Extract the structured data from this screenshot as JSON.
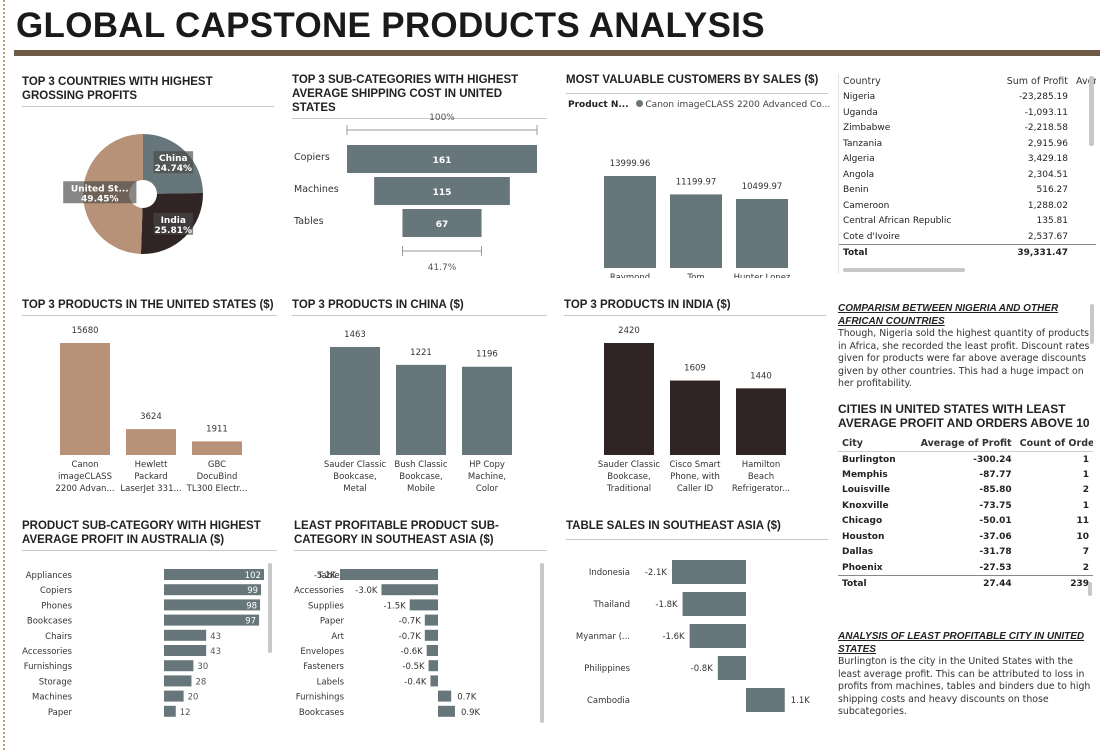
{
  "title": "GLOBAL CAPSTONE PRODUCTS ANALYSIS",
  "colors": {
    "tan": "#b89278",
    "gray": "#67767a",
    "dark": "#302524",
    "rule": "#6d5a47"
  },
  "panels": {
    "top_countries": {
      "title": "TOP 3 COUNTRIES WITH HIGHEST GROSSING PROFITS"
    },
    "shipping": {
      "title": "TOP 3 SUB-CATEGORIES WITH HIGHEST AVERAGE SHIPPING COST IN UNITED STATES",
      "top_pct": "100%",
      "bottom_pct": "41.7%"
    },
    "customers": {
      "title": "MOST VALUABLE CUSTOMERS BY SALES ($)",
      "legend_label": "Product N...",
      "legend_value": "Canon imageCLASS 2200 Advanced Co..."
    },
    "us_products": {
      "title": "TOP 3 PRODUCTS IN THE UNITED STATES ($)"
    },
    "china_products": {
      "title": "TOP 3 PRODUCTS IN CHINA ($)"
    },
    "india_products": {
      "title": "TOP 3 PRODUCTS IN INDIA ($)"
    },
    "australia": {
      "title": "PRODUCT SUB-CATEGORY WITH HIGHEST AVERAGE PROFIT IN AUSTRALIA ($)"
    },
    "sea_least": {
      "title": "LEAST PROFITABLE PRODUCT SUB-CATEGORY IN SOUTHEAST ASIA ($)"
    },
    "sea_sales": {
      "title": "TABLE SALES IN SOUTHEAST ASIA ($)"
    }
  },
  "country_table": {
    "headers": [
      "Country",
      "Sum of Profit",
      "Avera"
    ],
    "rows": [
      [
        "Nigeria",
        "-23,285.19"
      ],
      [
        "Uganda",
        "-1,093.11"
      ],
      [
        "Zimbabwe",
        "-2,218.58"
      ],
      [
        "Tanzania",
        "2,915.96"
      ],
      [
        "Algeria",
        "3,429.18"
      ],
      [
        "Angola",
        "2,304.51"
      ],
      [
        "Benin",
        "516.27"
      ],
      [
        "Cameroon",
        "1,288.02"
      ],
      [
        "Central African Republic",
        "135.81"
      ],
      [
        "Cote d'Ivoire",
        "2,537.67"
      ]
    ],
    "total_label": "Total",
    "total_value": "39,331.47"
  },
  "nigeria_analysis": {
    "heading": "COMPARISM BETWEEN NIGERIA AND OTHER AFRICAN COUNTRIES",
    "body": "Though, Nigeria sold the highest quantity of products in Africa, she recorded the least profit. Discount rates given for products were far above average discounts given by other countries. This had a huge impact on her profitability."
  },
  "cities": {
    "title": "CITIES IN UNITED STATES WITH LEAST AVERAGE PROFIT AND ORDERS ABOVE 10",
    "headers": [
      "City",
      "Average of Profit",
      "Count of Order I"
    ],
    "rows": [
      [
        "Burlington",
        "-300.24",
        "1"
      ],
      [
        "Memphis",
        "-87.77",
        "1"
      ],
      [
        "Louisville",
        "-85.80",
        "2"
      ],
      [
        "Knoxville",
        "-73.75",
        "1"
      ],
      [
        "Chicago",
        "-50.01",
        "11"
      ],
      [
        "Houston",
        "-37.06",
        "10"
      ],
      [
        "Dallas",
        "-31.78",
        "7"
      ],
      [
        "Phoenix",
        "-27.53",
        "2"
      ]
    ],
    "total_label": "Total",
    "total_avg": "27.44",
    "total_count": "239"
  },
  "city_analysis": {
    "heading": "ANALYSIS  OF LEAST PROFITABLE CITY IN UNITED STATES",
    "body": "Burlington is the city in the United States with the least average profit. This can be attributed to loss in profits from machines, tables and binders due to high shipping costs and heavy discounts on those subcategories."
  },
  "chart_data": [
    {
      "type": "pie",
      "id": "top_countries",
      "categories": [
        "China",
        "India",
        "United St..."
      ],
      "values": [
        24.74,
        25.81,
        49.45
      ],
      "labels": [
        "24.74%",
        "25.81%",
        "49.45%"
      ],
      "colors": [
        "#67767a",
        "#302524",
        "#b89278"
      ]
    },
    {
      "type": "bar",
      "id": "shipping",
      "orientation": "horizontal-funnel",
      "categories": [
        "Copiers",
        "Machines",
        "Tables"
      ],
      "values": [
        161,
        115,
        67
      ]
    },
    {
      "type": "bar",
      "id": "customers",
      "categories": [
        [
          "Raymond",
          "Buch"
        ],
        [
          "Tom",
          "Ashbrook"
        ],
        [
          "Hunter Lopez"
        ]
      ],
      "values": [
        13999.96,
        11199.97,
        10499.97
      ],
      "labels": [
        "13999.96",
        "11199.97",
        "10499.97"
      ]
    },
    {
      "type": "bar",
      "id": "us_products",
      "categories": [
        [
          "Canon",
          "imageCLASS",
          "2200 Advan..."
        ],
        [
          "Hewlett",
          "Packard",
          "LaserJet 331..."
        ],
        [
          "GBC",
          "DocuBind",
          "TL300 Electr..."
        ]
      ],
      "values": [
        15680,
        3624,
        1911
      ]
    },
    {
      "type": "bar",
      "id": "china_products",
      "categories": [
        [
          "Sauder Classic",
          "Bookcase,",
          "Metal"
        ],
        [
          "Bush Classic",
          "Bookcase,",
          "Mobile"
        ],
        [
          "HP Copy",
          "Machine,",
          "Color"
        ]
      ],
      "values": [
        1463,
        1221,
        1196
      ]
    },
    {
      "type": "bar",
      "id": "india_products",
      "categories": [
        [
          "Sauder Classic",
          "Bookcase,",
          "Traditional"
        ],
        [
          "Cisco Smart",
          "Phone, with",
          "Caller ID"
        ],
        [
          "Hamilton",
          "Beach",
          "Refrigerator..."
        ]
      ],
      "values": [
        2420,
        1609,
        1440
      ]
    },
    {
      "type": "bar",
      "id": "australia",
      "orientation": "horizontal",
      "categories": [
        "Appliances",
        "Copiers",
        "Phones",
        "Bookcases",
        "Chairs",
        "Accessories",
        "Furnishings",
        "Storage",
        "Machines",
        "Paper"
      ],
      "values": [
        102,
        99,
        98,
        97,
        43,
        43,
        30,
        28,
        20,
        12
      ]
    },
    {
      "type": "bar",
      "id": "sea_least",
      "orientation": "horizontal",
      "categories": [
        "Tables",
        "Accessories",
        "Supplies",
        "Paper",
        "Art",
        "Envelopes",
        "Fasteners",
        "Labels",
        "Furnishings",
        "Bookcases"
      ],
      "values": [
        -5.2,
        -3.0,
        -1.5,
        -0.7,
        -0.7,
        -0.6,
        -0.5,
        -0.4,
        0.7,
        0.9
      ],
      "labels": [
        "-5.2K",
        "-3.0K",
        "-1.5K",
        "-0.7K",
        "-0.7K",
        "-0.6K",
        "-0.5K",
        "-0.4K",
        "0.7K",
        "0.9K"
      ]
    },
    {
      "type": "bar",
      "id": "sea_sales",
      "orientation": "horizontal",
      "categories": [
        "Indonesia",
        "Thailand",
        "Myanmar (...",
        "Philippines",
        "Cambodia"
      ],
      "values": [
        -2.1,
        -1.8,
        -1.6,
        -0.8,
        1.1
      ],
      "labels": [
        "-2.1K",
        "-1.8K",
        "-1.6K",
        "-0.8K",
        "1.1K"
      ]
    }
  ]
}
